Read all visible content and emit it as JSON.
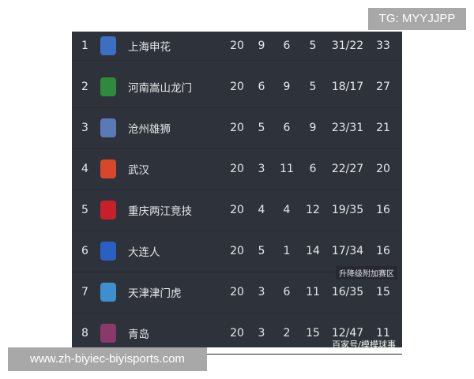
{
  "watermark_top": "TG: MYYJJPP",
  "watermark_bottom": "www.zh-biyiec-biyisports.com",
  "zone_label": "升降级附加赛区",
  "source_label": "百家号/模模球事",
  "rows": [
    {
      "rank": "1",
      "team": "上海申花",
      "p": "20",
      "w": "9",
      "d": "6",
      "l": "5",
      "gd": "31/22",
      "pts": "33",
      "color": "#3a6fc4"
    },
    {
      "rank": "2",
      "team": "河南嵩山龙门",
      "p": "20",
      "w": "6",
      "d": "9",
      "l": "5",
      "gd": "18/17",
      "pts": "27",
      "color": "#2f8a3e"
    },
    {
      "rank": "3",
      "team": "沧州雄狮",
      "p": "20",
      "w": "5",
      "d": "6",
      "l": "9",
      "gd": "23/31",
      "pts": "21",
      "color": "#5a7ab5"
    },
    {
      "rank": "4",
      "team": "武汉",
      "p": "20",
      "w": "3",
      "d": "11",
      "l": "6",
      "gd": "22/27",
      "pts": "20",
      "color": "#d9472b"
    },
    {
      "rank": "5",
      "team": "重庆两江竞技",
      "p": "20",
      "w": "4",
      "d": "4",
      "l": "12",
      "gd": "19/35",
      "pts": "16",
      "color": "#c8202a"
    },
    {
      "rank": "6",
      "team": "大连人",
      "p": "20",
      "w": "5",
      "d": "1",
      "l": "14",
      "gd": "17/34",
      "pts": "16",
      "color": "#2a5fc4"
    },
    {
      "rank": "7",
      "team": "天津津门虎",
      "p": "20",
      "w": "3",
      "d": "6",
      "l": "11",
      "gd": "16/35",
      "pts": "15",
      "color": "#3f8fd0"
    },
    {
      "rank": "8",
      "team": "青岛",
      "p": "20",
      "w": "3",
      "d": "2",
      "l": "15",
      "gd": "12/47",
      "pts": "11",
      "color": "#8a3a6a"
    }
  ]
}
